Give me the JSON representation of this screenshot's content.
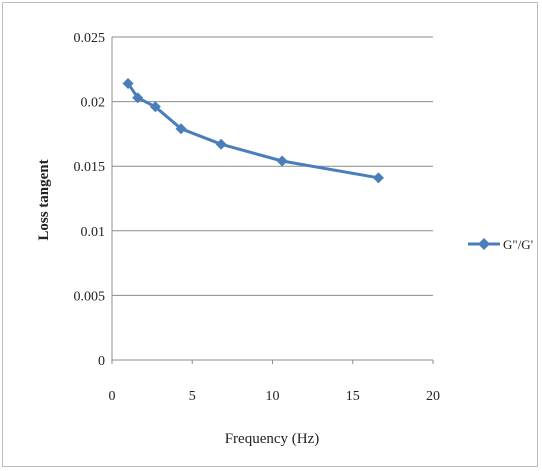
{
  "chart_data": {
    "type": "line",
    "title": "",
    "xlabel": "Frequency (Hz)",
    "ylabel": "Loss tangent",
    "xlim": [
      0,
      20
    ],
    "ylim": [
      0,
      0.025
    ],
    "x_ticks": [
      0,
      5,
      10,
      15,
      20
    ],
    "y_ticks": [
      0,
      0.005,
      0.01,
      0.015,
      0.02,
      0.025
    ],
    "x_tick_labels": [
      "0",
      "5",
      "10",
      "15",
      "20"
    ],
    "y_tick_labels": [
      "0",
      "0.005",
      "0.01",
      "0.015",
      "0.02",
      "0.025"
    ],
    "grid": "horizontal",
    "legend_position": "right",
    "series": [
      {
        "name": "G\"/G'",
        "color": "#4a7ebb",
        "marker": "diamond",
        "x": [
          1.0,
          1.6,
          2.7,
          4.3,
          6.8,
          10.6,
          16.6
        ],
        "y": [
          0.0214,
          0.0203,
          0.0196,
          0.0179,
          0.0167,
          0.0154,
          0.0141
        ]
      }
    ]
  }
}
